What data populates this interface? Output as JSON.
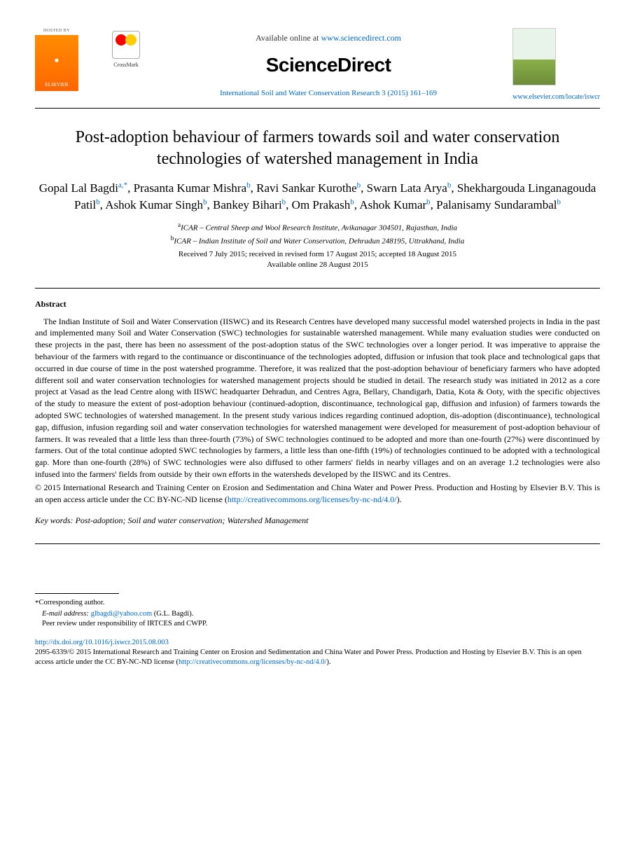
{
  "header": {
    "hosted_by": "HOSTED BY",
    "elsevier_label": "ELSEVIER",
    "crossmark_label": "CrossMark",
    "available_text": "Available online at ",
    "available_url": "www.sciencedirect.com",
    "brand": "ScienceDirect",
    "citation": "International Soil and Water Conservation Research 3 (2015) 161–169",
    "journal_url": "www.elsevier.com/locate/iswcr"
  },
  "title": "Post-adoption behaviour of farmers towards soil and water conservation technologies of watershed management in India",
  "authors": [
    {
      "name": "Gopal Lal Bagdi",
      "aff": "a",
      "corr": true
    },
    {
      "name": "Prasanta Kumar Mishra",
      "aff": "b"
    },
    {
      "name": "Ravi Sankar Kurothe",
      "aff": "b"
    },
    {
      "name": "Swarn Lata Arya",
      "aff": "b"
    },
    {
      "name": "Shekhargouda Linganagouda Patil",
      "aff": "b"
    },
    {
      "name": "Ashok Kumar Singh",
      "aff": "b"
    },
    {
      "name": "Bankey Bihari",
      "aff": "b"
    },
    {
      "name": "Om Prakash",
      "aff": "b"
    },
    {
      "name": "Ashok Kumar",
      "aff": "b"
    },
    {
      "name": "Palanisamy Sundarambal",
      "aff": "b"
    }
  ],
  "affiliations": {
    "a": "ICAR – Central Sheep and Wool Research Institute, Avikanagar 304501, Rajasthan, India",
    "b": "ICAR – Indian Institute of Soil and Water Conservation, Dehradun 248195, Uttrakhand, India"
  },
  "dates": {
    "received": "Received 7 July 2015; received in revised form 17 August 2015; accepted 18 August 2015",
    "online": "Available online 28 August 2015"
  },
  "abstract_label": "Abstract",
  "abstract_text": "The Indian Institute of Soil and Water Conservation (IISWC) and its Research Centres have developed many successful model watershed projects in India in the past and implemented many Soil and Water Conservation (SWC) technologies for sustainable watershed management. While many evaluation studies were conducted on these projects in the past, there has been no assessment of the post-adoption status of the SWC technologies over a longer period. It was imperative to appraise the behaviour of the farmers with regard to the continuance or discontinuance of the technologies adopted, diffusion or infusion that took place and technological gaps that occurred in due course of time in the post watershed programme. Therefore, it was realized that the post-adoption behaviour of beneficiary farmers who have adopted different soil and water conservation technologies for watershed management projects should be studied in detail. The research study was initiated in 2012 as a core project at Vasad as the lead Centre along with IISWC headquarter Dehradun, and Centres Agra, Bellary, Chandigarh, Datia, Kota & Ooty, with the specific objectives of the study to measure the extent of post-adoption behaviour (continued-adoption, discontinuance, technological gap, diffusion and infusion) of farmers towards the adopted SWC technologies of watershed management. In the present study various indices regarding continued adoption, dis-adoption (discontinuance), technological gap, diffusion, infusion regarding soil and water conservation technologies for watershed management were developed for measurement of post-adoption behaviour of farmers. It was revealed that a little less than three-fourth (73%) of SWC technologies continued to be adopted and more than one-fourth (27%) were discontinued by farmers. Out of the total continue adopted SWC technologies by farmers, a little less than one-fifth (19%) of technologies continued to be adopted with a technological gap. More than one-fourth (28%) of SWC technologies were also diffused to other farmers' fields in nearby villages and on an average 1.2 technologies were also infused into the farmers' fields from outside by their own efforts in the watersheds developed by the IISWC and its Centres.",
  "license_text": "© 2015 International Research and Training Center on Erosion and Sedimentation and China Water and Power Press. Production and Hosting by Elsevier B.V. This is an open access article under the CC BY-NC-ND license",
  "license_url_text": "http://creativecommons.org/licenses/by-nc-nd/4.0/",
  "keywords_label": "Key words:",
  "keywords_text": " Post-adoption; Soil and water conservation; Watershed Management",
  "footnotes": {
    "corr_label": "Corresponding author.",
    "email_label": "E-mail address: ",
    "email": "glbagdi@yahoo.com",
    "email_name": " (G.L. Bagdi).",
    "peer": "Peer review under responsibility of IRTCES and CWPP."
  },
  "doi": {
    "url": "http://dx.doi.org/10.1016/j.iswcr.2015.08.003",
    "issn_line": "2095-6339/© 2015 International Research and Training Center on Erosion and Sedimentation and China Water and Power Press. Production and Hosting by Elsevier B.V. This is an open access article under the CC BY-NC-ND license (",
    "issn_url": "http://creativecommons.org/licenses/by-nc-nd/4.0/",
    "issn_close": ")."
  },
  "colors": {
    "link": "#0066cc",
    "elsevier_orange": "#ff6600",
    "text": "#000000"
  }
}
